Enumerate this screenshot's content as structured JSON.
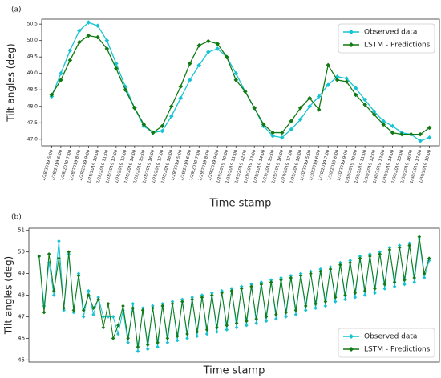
{
  "chart_data": [
    {
      "type": "line",
      "panel_label": "(a)",
      "xlabel": "Time stamp",
      "ylabel": "Tilt angles (deg)",
      "legend": "upper right",
      "categories": [
        "1/28/2019 5:00",
        "1/28/2019 6:00",
        "1/28/2019 7:00",
        "1/28/2019 8:00",
        "1/28/2019 9:00",
        "1/28/2019 10:00",
        "1/28/2019 11:00",
        "1/28/2019 12:00",
        "1/28/2019 13:00",
        "1/28/2019 14:00",
        "1/28/2019 15:00",
        "1/28/2019 16:00",
        "1/28/2019 17:00",
        "1/28/2019 18:00",
        "1/29/2019 5:00",
        "1/29/2019 6:00",
        "1/29/2019 7:00",
        "1/29/2019 8:00",
        "1/29/2019 9:00",
        "1/29/2019 10:00",
        "1/29/2019 11:00",
        "1/29/2019 12:00",
        "1/29/2019 13:00",
        "1/29/2019 14:00",
        "1/29/2019 15:00",
        "1/29/2019 16:00",
        "1/29/2019 17:00",
        "1/29/2019 18:00",
        "1/30/2019 5:00",
        "1/30/2019 6:00",
        "1/30/2019 7:00",
        "1/30/2019 8:00",
        "1/30/2019 9:00",
        "1/30/2019 10:00",
        "1/30/2019 11:00",
        "1/30/2019 12:00",
        "1/30/2019 13:00",
        "1/30/2019 14:00",
        "1/30/2019 15:00",
        "1/30/2019 16:00",
        "1/30/2019 17:00",
        "1/30/2019 18:00"
      ],
      "series": [
        {
          "name": "Observed data",
          "color": "#17c3d3",
          "values": [
            48.3,
            49.0,
            49.7,
            50.3,
            50.55,
            50.45,
            50.0,
            49.3,
            48.6,
            47.95,
            47.4,
            47.2,
            47.25,
            47.7,
            48.25,
            48.8,
            49.25,
            49.65,
            49.75,
            49.5,
            49.0,
            48.45,
            47.95,
            47.4,
            47.1,
            47.05,
            47.3,
            47.6,
            48.0,
            48.3,
            48.65,
            48.9,
            48.85,
            48.55,
            48.2,
            47.85,
            47.55,
            47.4,
            47.2,
            47.15,
            46.95,
            47.05
          ]
        },
        {
          "name": "LSTM - Predictions",
          "color": "#127a12",
          "values": [
            48.35,
            48.8,
            49.4,
            49.95,
            50.15,
            50.1,
            49.75,
            49.15,
            48.5,
            47.95,
            47.45,
            47.2,
            47.4,
            48.0,
            48.6,
            49.3,
            49.85,
            49.98,
            49.9,
            49.5,
            48.8,
            48.45,
            47.95,
            47.45,
            47.2,
            47.2,
            47.55,
            47.95,
            48.25,
            47.9,
            49.25,
            48.8,
            48.75,
            48.35,
            48.05,
            47.75,
            47.45,
            47.2,
            47.15,
            47.15,
            47.15,
            47.35
          ]
        }
      ],
      "ylim": [
        46.8,
        50.65
      ],
      "yticks": [
        {
          "value": 47,
          "label": "47.0"
        },
        {
          "value": 47.5,
          "label": "47.5"
        },
        {
          "value": 48,
          "label": "48.0"
        },
        {
          "value": 48.5,
          "label": "48.5"
        },
        {
          "value": 49,
          "label": "49.0"
        },
        {
          "value": 49.5,
          "label": "49.5"
        },
        {
          "value": 50,
          "label": "50.0"
        },
        {
          "value": 50.5,
          "label": "50.5"
        }
      ]
    },
    {
      "type": "line",
      "panel_label": "(b)",
      "xlabel": "Time stamp",
      "ylabel": "Tilt angles (deg)",
      "legend": "lower right",
      "categories": [
        null,
        null,
        null,
        null,
        null,
        null,
        null,
        null,
        null,
        null,
        null,
        null,
        null,
        null,
        null,
        null,
        null,
        null,
        null,
        null,
        null,
        null,
        null,
        null,
        null,
        null,
        null,
        null,
        null,
        null,
        null,
        null,
        null,
        null,
        null,
        null,
        null,
        null,
        null,
        null,
        null,
        null,
        null,
        null,
        null,
        null,
        null,
        null,
        null,
        null,
        null,
        null,
        null,
        null,
        null,
        null,
        null,
        null,
        null,
        null,
        null,
        null,
        null,
        null,
        null,
        null,
        null,
        null,
        null,
        null,
        null,
        null,
        null,
        null,
        null,
        null,
        null,
        null,
        null,
        null
      ],
      "series": [
        {
          "name": "Observed data",
          "color": "#17c3d3",
          "values": [
            49.8,
            47.5,
            49.5,
            48.0,
            50.5,
            47.3,
            49.9,
            47.2,
            49.0,
            47.0,
            48.2,
            47.1,
            47.9,
            47.0,
            47.0,
            47.0,
            46.2,
            47.3,
            45.8,
            47.6,
            45.4,
            47.4,
            45.5,
            47.5,
            45.6,
            47.6,
            45.8,
            47.7,
            45.9,
            47.8,
            46.0,
            47.9,
            46.1,
            48.0,
            46.2,
            48.1,
            46.3,
            48.2,
            46.4,
            48.3,
            46.5,
            48.4,
            46.6,
            48.5,
            46.7,
            48.6,
            46.8,
            48.7,
            46.9,
            48.8,
            47.0,
            48.9,
            47.1,
            49.0,
            47.3,
            49.1,
            47.4,
            49.2,
            47.5,
            49.3,
            47.7,
            49.5,
            47.8,
            49.6,
            47.9,
            49.8,
            48.0,
            49.9,
            48.1,
            50.0,
            48.3,
            50.2,
            48.4,
            50.3,
            48.5,
            50.4,
            48.6,
            50.6,
            48.8,
            49.6
          ]
        },
        {
          "name": "LSTM - Predictions",
          "color": "#127a12",
          "values": [
            49.8,
            47.2,
            49.9,
            48.2,
            49.7,
            47.4,
            50.0,
            47.3,
            48.9,
            47.3,
            48.0,
            47.4,
            47.8,
            46.5,
            47.6,
            46.0,
            46.6,
            47.5,
            46.0,
            47.4,
            45.6,
            47.3,
            45.7,
            47.4,
            45.8,
            47.5,
            46.0,
            47.6,
            46.1,
            47.7,
            46.2,
            47.8,
            46.3,
            47.9,
            46.4,
            48.0,
            46.5,
            48.1,
            46.6,
            48.2,
            46.7,
            48.3,
            46.8,
            48.4,
            46.9,
            48.5,
            47.0,
            48.6,
            47.1,
            48.7,
            47.2,
            48.8,
            47.3,
            48.9,
            47.5,
            49.0,
            47.6,
            49.1,
            47.7,
            49.2,
            47.9,
            49.4,
            48.0,
            49.5,
            48.1,
            49.7,
            48.2,
            49.8,
            48.3,
            49.9,
            48.5,
            50.1,
            48.6,
            50.2,
            48.7,
            50.3,
            48.8,
            50.7,
            49.0,
            49.7
          ]
        }
      ],
      "ylim": [
        44.9,
        51.1
      ],
      "yticks": [
        45,
        46,
        47,
        48,
        49,
        50,
        51
      ]
    }
  ]
}
